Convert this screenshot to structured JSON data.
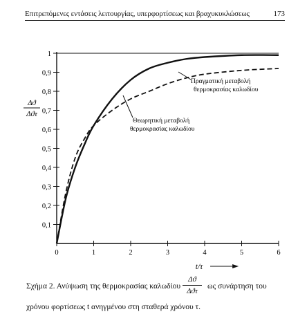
{
  "header": {
    "title": "Επιτρεπόμενες εντάσεις λειτουργίας, υπερφορτίσεως και βραχυκυκλώσεως",
    "page_number": "173"
  },
  "chart_data": {
    "type": "line",
    "xlabel": "t/τ",
    "ylabel_num": "Δϑ",
    "ylabel_den": "Δϑτ",
    "xlim": [
      0,
      6
    ],
    "ylim": [
      0,
      1
    ],
    "x_ticks": [
      "0",
      "1",
      "2",
      "3",
      "4",
      "5",
      "6"
    ],
    "y_ticks": [
      "0,1",
      "0,2",
      "0,3",
      "0,4",
      "0,5",
      "0,6",
      "0,7",
      "0,8",
      "0,9",
      "1"
    ],
    "y_tick_values": [
      0.1,
      0.2,
      0.3,
      0.4,
      0.5,
      0.6,
      0.7,
      0.8,
      0.9,
      1.0
    ],
    "series": [
      {
        "style": "solid",
        "x": [
          0,
          0.25,
          0.5,
          0.75,
          1.0,
          1.5,
          2.0,
          2.5,
          3.0,
          3.5,
          4.0,
          5.0,
          6.0
        ],
        "values": [
          0,
          0.24,
          0.4,
          0.52,
          0.62,
          0.76,
          0.86,
          0.92,
          0.95,
          0.97,
          0.98,
          0.99,
          0.99
        ]
      },
      {
        "style": "dashed",
        "x": [
          0,
          0.25,
          0.5,
          0.75,
          1.0,
          1.5,
          2.0,
          2.5,
          3.0,
          3.5,
          4.0,
          5.0,
          6.0
        ],
        "values": [
          0,
          0.27,
          0.45,
          0.55,
          0.62,
          0.7,
          0.76,
          0.8,
          0.84,
          0.87,
          0.89,
          0.91,
          0.92
        ]
      }
    ],
    "annotations": [
      {
        "line1": "Πραγματική μεταβολή",
        "line2": "θερμοκρασίας καλωδίου"
      },
      {
        "line1": "Θεωρητική μεταβολή",
        "line2": "θερμοκρασίας καλωδίου"
      }
    ],
    "grid": false
  },
  "caption": {
    "part1": "Σχήμα 2. Ανύψωση της θερμοκρασίας καλωδίου",
    "frac_num": "Δϑ",
    "frac_den": "Δϑτ",
    "part2": "ως συνάρτηση του",
    "line2": "χρόνου φορτίσεως t ανηγμένου στη σταθερά χρόνου τ."
  }
}
